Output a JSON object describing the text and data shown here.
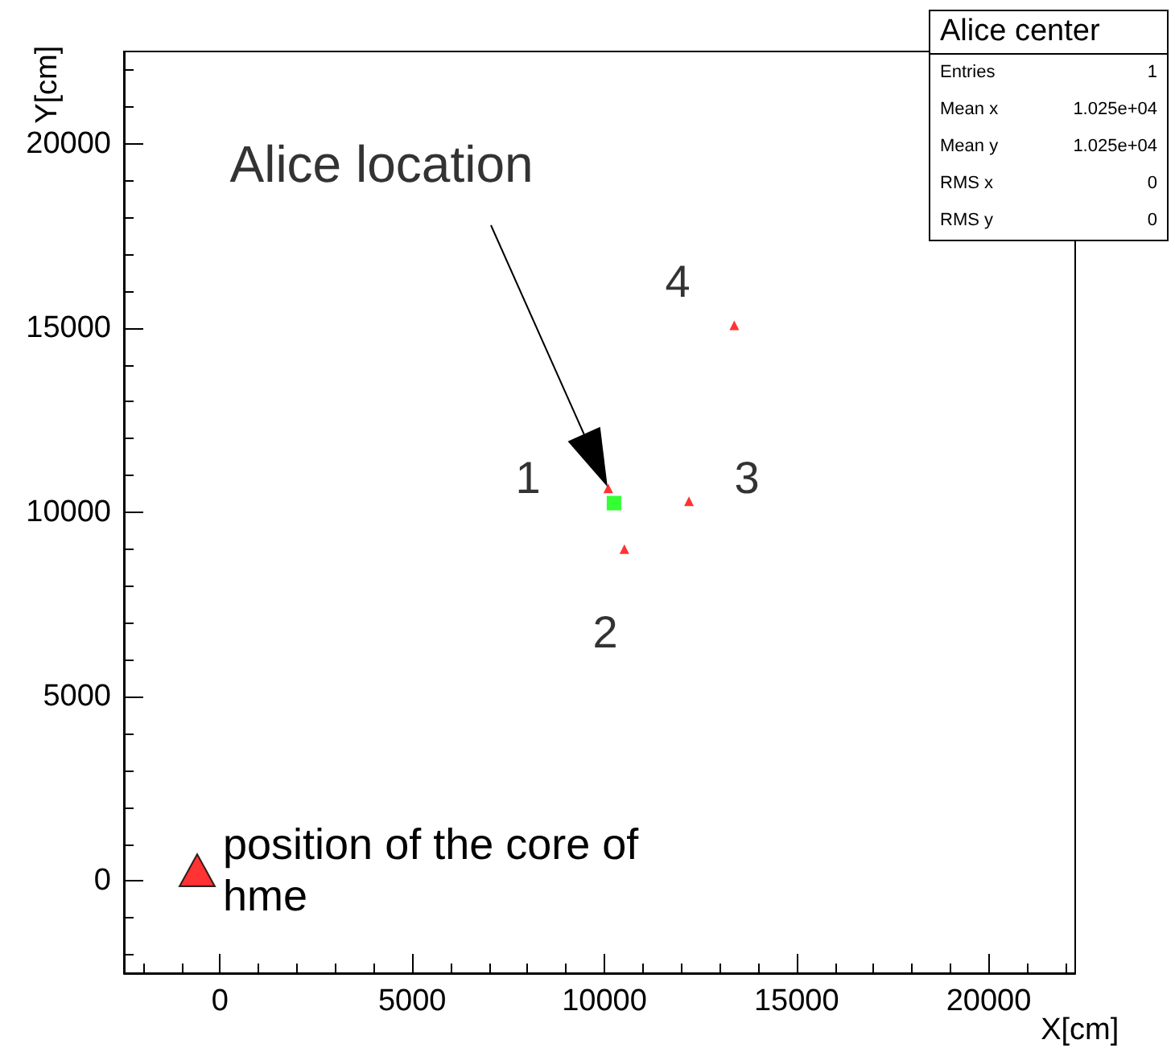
{
  "chart_data": {
    "type": "scatter",
    "xlabel": "X[cm]",
    "ylabel": "Y[cm]",
    "xlim": [
      -2500,
      22250
    ],
    "xticks": [
      0,
      5000,
      10000,
      15000,
      20000
    ],
    "ylim": [
      -2500,
      22500
    ],
    "yticks": [
      0,
      5000,
      10000,
      15000,
      20000
    ],
    "grid": false,
    "legend": "bottom left",
    "series": [
      {
        "name": "position of the core of hme",
        "color": "#ff0000",
        "marker": "triangle",
        "x": [
          10100,
          10520,
          12200,
          13380
        ],
        "values": [
          10650,
          9000,
          10300,
          15070
        ]
      },
      {
        "color": "#00ff00",
        "marker": "square",
        "x": [
          10250
        ],
        "values": [
          10250
        ]
      }
    ],
    "annotations": [
      "Alice location",
      "1",
      "2",
      "3",
      "4",
      "Alice center",
      "Entries",
      "1",
      "Mean x",
      "1.025e+04",
      "Mean y",
      "1.025e+04",
      "RMS x",
      "0",
      "RMS y",
      "0"
    ]
  }
}
